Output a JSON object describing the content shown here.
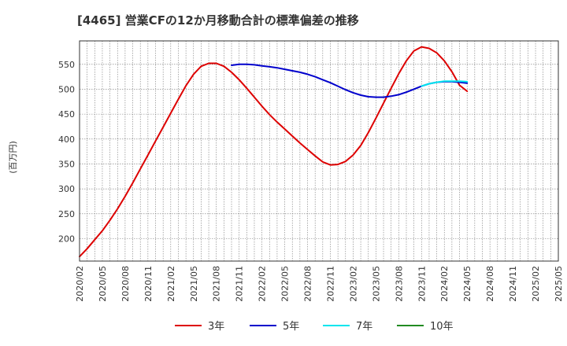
{
  "chart_data": {
    "type": "line",
    "title": "[4465]  営業CFの12か月移動合計の標準偏差の推移",
    "ylabel": "(百万円)",
    "xlabel": "",
    "ylim": [
      155,
      597
    ],
    "yticks": [
      200,
      250,
      300,
      350,
      400,
      450,
      500,
      550
    ],
    "xticks": [
      "2020/02",
      "2020/05",
      "2020/08",
      "2020/11",
      "2021/02",
      "2021/05",
      "2021/08",
      "2021/11",
      "2022/02",
      "2022/05",
      "2022/08",
      "2022/11",
      "2023/02",
      "2023/05",
      "2023/08",
      "2023/11",
      "2024/02",
      "2024/05",
      "2024/08",
      "2024/11",
      "2025/02",
      "2025/05"
    ],
    "grid": true,
    "legend_position": "bottom",
    "series": [
      {
        "name": "3年",
        "color": "#dd0000",
        "x": [
          "2020/02",
          "2020/03",
          "2020/04",
          "2020/05",
          "2020/06",
          "2020/07",
          "2020/08",
          "2020/09",
          "2020/10",
          "2020/11",
          "2020/12",
          "2021/01",
          "2021/02",
          "2021/03",
          "2021/04",
          "2021/05",
          "2021/06",
          "2021/07",
          "2021/08",
          "2021/09",
          "2021/10",
          "2021/11",
          "2021/12",
          "2022/01",
          "2022/02",
          "2022/03",
          "2022/04",
          "2022/05",
          "2022/06",
          "2022/07",
          "2022/08",
          "2022/09",
          "2022/10",
          "2022/11",
          "2022/12",
          "2023/01",
          "2023/02",
          "2023/03",
          "2023/04",
          "2023/05",
          "2023/06",
          "2023/07",
          "2023/08",
          "2023/09",
          "2023/10",
          "2023/11",
          "2023/12",
          "2024/01",
          "2024/02",
          "2024/03",
          "2024/04",
          "2024/05"
        ],
        "values": [
          164,
          180,
          198,
          216,
          237,
          260,
          285,
          312,
          340,
          368,
          396,
          424,
          452,
          480,
          507,
          530,
          546,
          552,
          552,
          546,
          534,
          519,
          502,
          484,
          466,
          449,
          434,
          420,
          406,
          392,
          379,
          366,
          354,
          348,
          349,
          355,
          368,
          387,
          413,
          442,
          472,
          502,
          531,
          557,
          577,
          585,
          582,
          573,
          557,
          535,
          508,
          496
        ]
      },
      {
        "name": "5年",
        "color": "#0000cc",
        "x": [
          "2021/10",
          "2021/11",
          "2021/12",
          "2022/01",
          "2022/02",
          "2022/03",
          "2022/04",
          "2022/05",
          "2022/06",
          "2022/07",
          "2022/08",
          "2022/09",
          "2022/10",
          "2022/11",
          "2022/12",
          "2023/01",
          "2023/02",
          "2023/03",
          "2023/04",
          "2023/05",
          "2023/06",
          "2023/07",
          "2023/08",
          "2023/09",
          "2023/10",
          "2023/11",
          "2023/12",
          "2024/01",
          "2024/02",
          "2024/03",
          "2024/04",
          "2024/05"
        ],
        "values": [
          548,
          550,
          550,
          549,
          547,
          545,
          543,
          540,
          537,
          534,
          530,
          525,
          519,
          513,
          506,
          499,
          493,
          488,
          485,
          484,
          484,
          486,
          489,
          494,
          500,
          506,
          511,
          514,
          515,
          515,
          514,
          512
        ]
      },
      {
        "name": "7年",
        "color": "#00e5ee",
        "x": [
          "2023/11",
          "2023/12",
          "2024/01",
          "2024/02",
          "2024/03",
          "2024/04",
          "2024/05"
        ],
        "values": [
          506,
          511,
          514,
          516,
          516,
          516,
          515
        ]
      },
      {
        "name": "10年",
        "color": "#228b22",
        "x": [],
        "values": []
      }
    ]
  }
}
